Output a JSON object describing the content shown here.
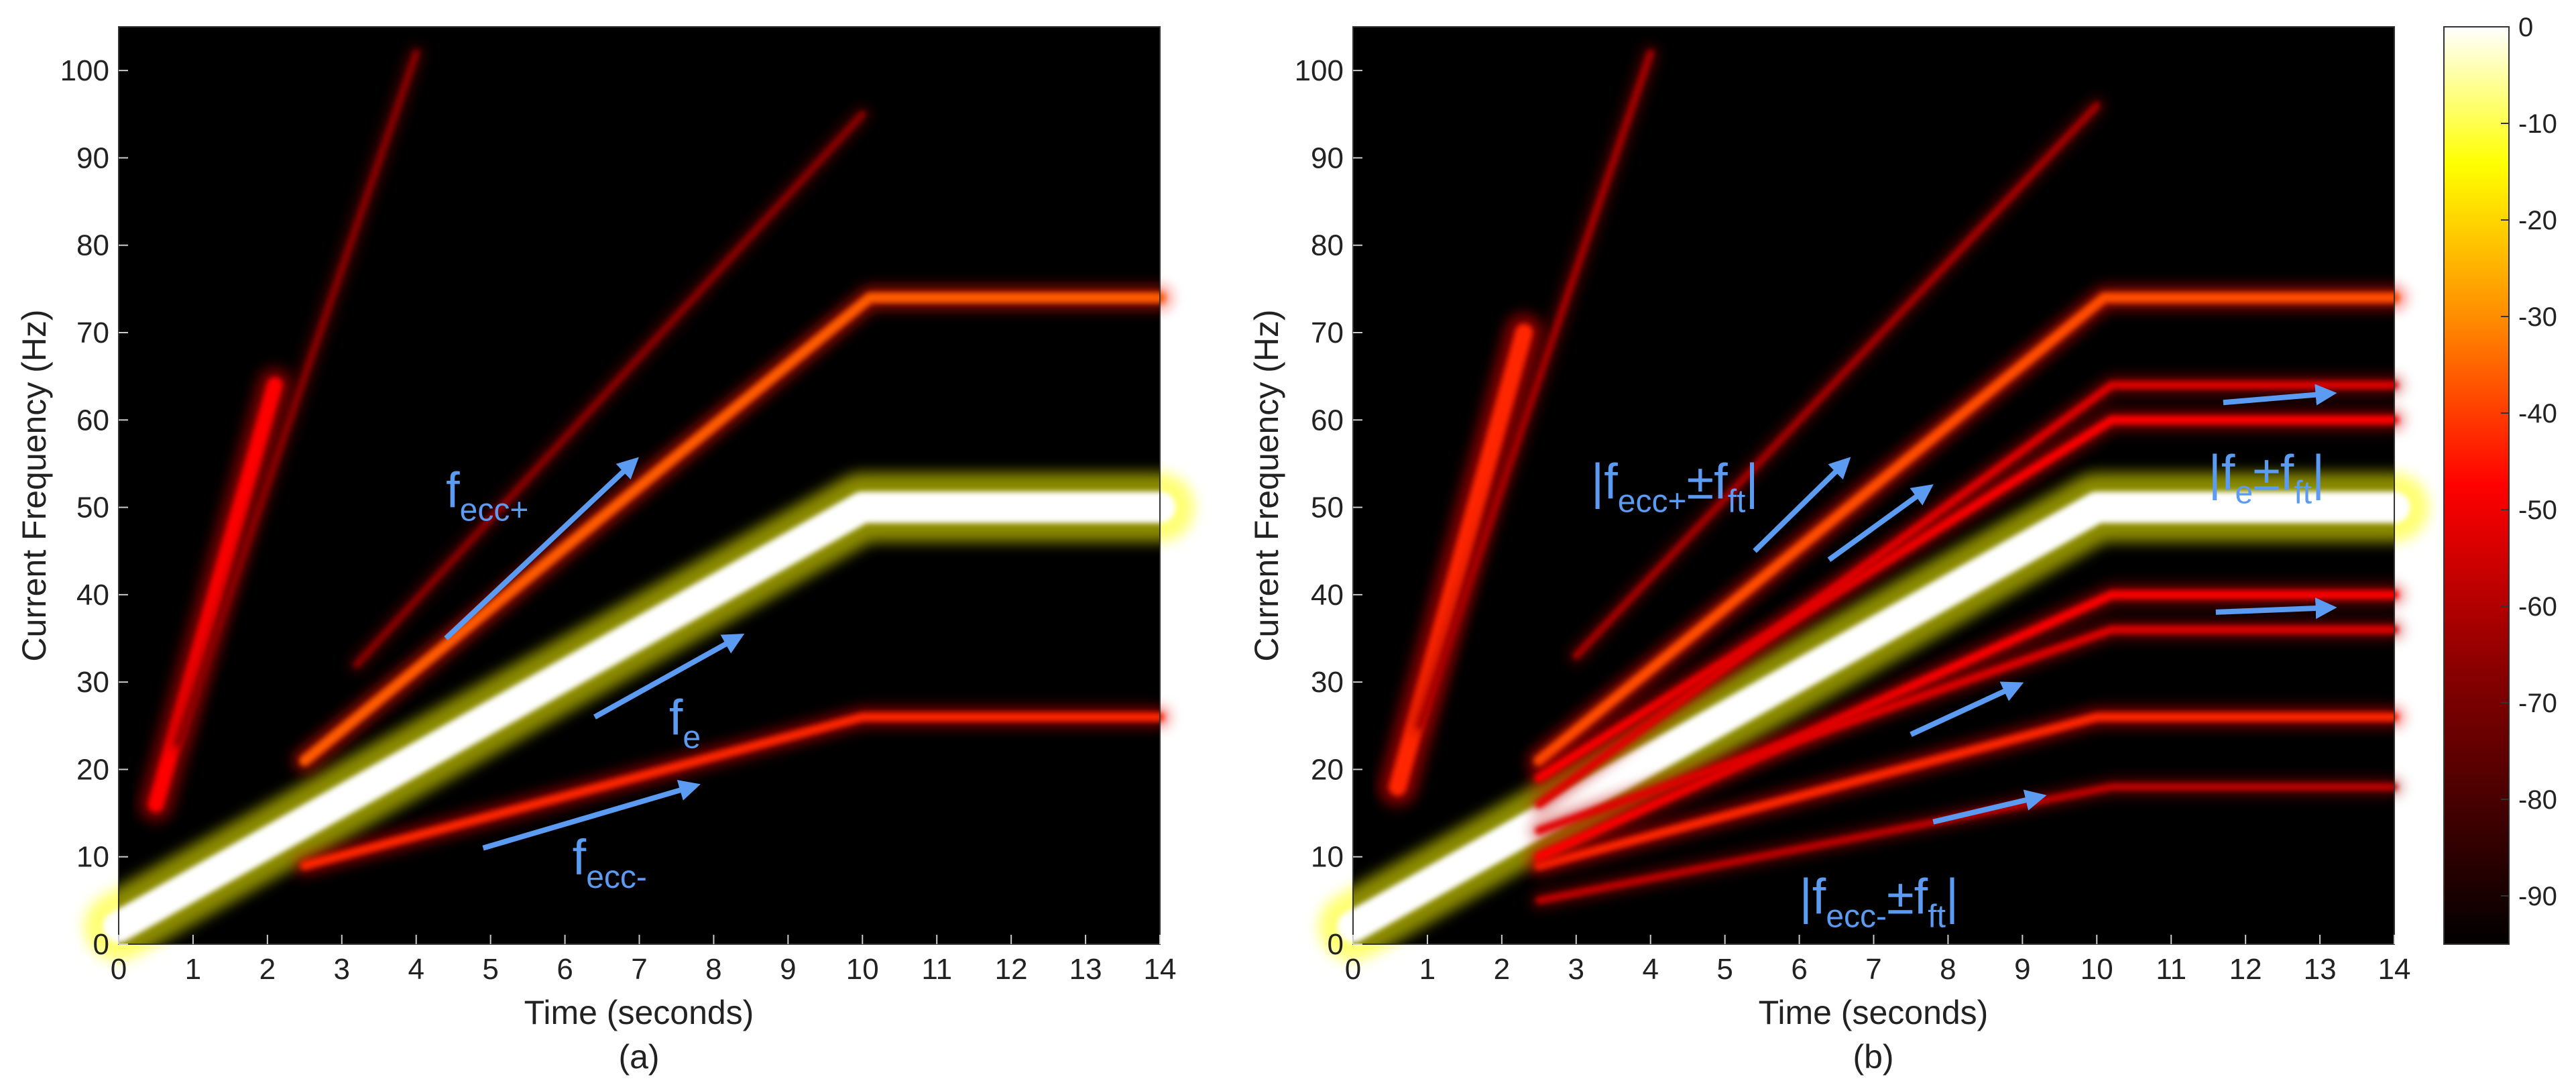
{
  "chart_data": {
    "type": "heatmap",
    "colormap": "hot",
    "colorbar": {
      "min": -95,
      "max": 0,
      "ticks": [
        0,
        -10,
        -20,
        -30,
        -40,
        -50,
        -60,
        -70,
        -80,
        -90
      ],
      "placement": "right"
    },
    "panels": [
      {
        "id": "a",
        "caption": "(a)",
        "xlabel": "Time (seconds)",
        "ylabel": "Current Frequency (Hz)",
        "xlim": [
          0,
          14
        ],
        "ylim": [
          0,
          105
        ],
        "xticks": [
          0,
          1,
          2,
          3,
          4,
          5,
          6,
          7,
          8,
          9,
          10,
          11,
          12,
          13,
          14
        ],
        "yticks": [
          0,
          10,
          20,
          30,
          40,
          50,
          60,
          70,
          80,
          90,
          100
        ],
        "traces": [
          {
            "name": "f_e",
            "intensity": 1.0,
            "width": 3.6,
            "points": [
              [
                0,
                2
              ],
              [
                10,
                50
              ],
              [
                14,
                50
              ]
            ]
          },
          {
            "name": "f_ecc+",
            "intensity": 0.62,
            "width": 1.2,
            "points": [
              [
                2.5,
                21
              ],
              [
                10.1,
                74
              ],
              [
                14,
                74
              ]
            ]
          },
          {
            "name": "f_ecc-",
            "intensity": 0.55,
            "width": 1.0,
            "points": [
              [
                2.5,
                9
              ],
              [
                10,
                26
              ],
              [
                14,
                26
              ]
            ]
          },
          {
            "name": "steep",
            "intensity": 0.5,
            "width": 1.8,
            "points": [
              [
                0.5,
                16
              ],
              [
                2.1,
                64
              ]
            ]
          },
          {
            "name": "steep-faint",
            "intensity": 0.3,
            "width": 0.8,
            "points": [
              [
                0.8,
                23
              ],
              [
                4,
                102
              ]
            ]
          },
          {
            "name": "upper-faint",
            "intensity": 0.3,
            "width": 0.8,
            "points": [
              [
                3.2,
                32
              ],
              [
                10,
                95
              ]
            ]
          },
          {
            "name": "top-band",
            "intensity": 0.45,
            "width": 1.0,
            "points": [
              [
                10.2,
                100
              ],
              [
                14,
                100
              ]
            ]
          },
          {
            "name": "top-band-2",
            "intensity": 0.25,
            "width": 0.6,
            "points": [
              [
                10.2,
                98
              ],
              [
                14,
                98
              ]
            ]
          },
          {
            "name": "lower-band",
            "intensity": 0.3,
            "width": 0.7,
            "points": [
              [
                10.2,
                45
              ],
              [
                14,
                45
              ]
            ]
          },
          {
            "name": "low-band",
            "intensity": 0.25,
            "width": 0.6,
            "points": [
              [
                10.2,
                21
              ],
              [
                14,
                21
              ]
            ]
          }
        ],
        "annotations": [
          {
            "main": "f",
            "sub": "ecc+",
            "x": 4.4,
            "y": 50
          },
          {
            "main": "f",
            "sub": "e",
            "x": 7.4,
            "y": 24
          },
          {
            "main": "f",
            "sub": "ecc-",
            "x": 6.1,
            "y": 8
          }
        ],
        "arrows": [
          {
            "from": [
              4.4,
              35
            ],
            "to": [
              6.9,
              55
            ]
          },
          {
            "from": [
              6.4,
              26
            ],
            "to": [
              8.3,
              35
            ]
          },
          {
            "from": [
              4.9,
              11
            ],
            "to": [
              7.7,
              18
            ]
          }
        ]
      },
      {
        "id": "b",
        "caption": "(b)",
        "xlabel": "Time (seconds)",
        "ylabel": "Current Frequency (Hz)",
        "xlim": [
          0,
          14
        ],
        "ylim": [
          0,
          105
        ],
        "xticks": [
          0,
          1,
          2,
          3,
          4,
          5,
          6,
          7,
          8,
          9,
          10,
          11,
          12,
          13,
          14
        ],
        "yticks": [
          0,
          10,
          20,
          30,
          40,
          50,
          60,
          70,
          80,
          90,
          100
        ],
        "traces": [
          {
            "name": "f_e",
            "intensity": 1.0,
            "width": 3.6,
            "points": [
              [
                0,
                2
              ],
              [
                10,
                50
              ],
              [
                14,
                50
              ]
            ]
          },
          {
            "name": "f_ecc+",
            "intensity": 0.6,
            "width": 1.2,
            "points": [
              [
                2.5,
                21
              ],
              [
                10.1,
                74
              ],
              [
                14,
                74
              ]
            ]
          },
          {
            "name": "f_ecc-",
            "intensity": 0.55,
            "width": 1.0,
            "points": [
              [
                2.5,
                9
              ],
              [
                10,
                26
              ],
              [
                14,
                26
              ]
            ]
          },
          {
            "name": "f_e+f_ft",
            "intensity": 0.5,
            "width": 1.0,
            "points": [
              [
                2.5,
                19
              ],
              [
                10.2,
                60
              ],
              [
                14,
                60
              ]
            ]
          },
          {
            "name": "f_e-f_ft",
            "intensity": 0.5,
            "width": 1.0,
            "points": [
              [
                2.5,
                10
              ],
              [
                10.2,
                40
              ],
              [
                14,
                40
              ]
            ]
          },
          {
            "name": "f_ecc+-f_ft",
            "intensity": 0.45,
            "width": 0.9,
            "points": [
              [
                2.5,
                16
              ],
              [
                10.2,
                64
              ],
              [
                14,
                64
              ]
            ]
          },
          {
            "name": "f_ecc-+f_ft",
            "intensity": 0.45,
            "width": 0.9,
            "points": [
              [
                2.5,
                13
              ],
              [
                10.2,
                36
              ],
              [
                14,
                36
              ]
            ]
          },
          {
            "name": "f_ecc--f_ft",
            "intensity": 0.4,
            "width": 0.8,
            "points": [
              [
                2.5,
                5
              ],
              [
                10.2,
                18
              ],
              [
                14,
                18
              ]
            ]
          },
          {
            "name": "steep",
            "intensity": 0.55,
            "width": 2.0,
            "points": [
              [
                0.6,
                18
              ],
              [
                2.3,
                70
              ]
            ]
          },
          {
            "name": "steep-faint",
            "intensity": 0.35,
            "width": 0.8,
            "points": [
              [
                0.9,
                25
              ],
              [
                4,
                102
              ]
            ]
          },
          {
            "name": "upper-faint",
            "intensity": 0.35,
            "width": 0.8,
            "points": [
              [
                3,
                33
              ],
              [
                10,
                96
              ]
            ]
          },
          {
            "name": "top-band",
            "intensity": 0.45,
            "width": 1.0,
            "points": [
              [
                10.2,
                100
              ],
              [
                14,
                100
              ]
            ]
          },
          {
            "name": "band-80",
            "intensity": 0.3,
            "width": 0.7,
            "points": [
              [
                10.2,
                80
              ],
              [
                14,
                80
              ]
            ]
          },
          {
            "name": "band-70",
            "intensity": 0.3,
            "width": 0.7,
            "points": [
              [
                10.2,
                70
              ],
              [
                14,
                70
              ]
            ]
          },
          {
            "name": "band-30",
            "intensity": 0.3,
            "width": 0.7,
            "points": [
              [
                10.2,
                30
              ],
              [
                14,
                30
              ]
            ]
          },
          {
            "name": "band-23",
            "intensity": 0.3,
            "width": 0.7,
            "points": [
              [
                10.2,
                23
              ],
              [
                14,
                23
              ]
            ]
          },
          {
            "name": "band-15",
            "intensity": 0.3,
            "width": 0.7,
            "points": [
              [
                10.2,
                15
              ],
              [
                14,
                15
              ]
            ]
          },
          {
            "name": "band-10",
            "intensity": 0.25,
            "width": 0.6,
            "points": [
              [
                10.2,
                10
              ],
              [
                14,
                10
              ]
            ]
          },
          {
            "name": "band-5",
            "intensity": 0.25,
            "width": 0.6,
            "points": [
              [
                10.2,
                5
              ],
              [
                14,
                5
              ]
            ]
          }
        ],
        "annotations": [
          {
            "main": "|f",
            "sub": "ecc+",
            "tail": "±f",
            "sub2": "ft",
            "end": "|",
            "x": 3.2,
            "y": 51
          },
          {
            "main": "|f",
            "sub": "e",
            "tail": "±f",
            "sub2": "ft",
            "end": "|",
            "x": 11.5,
            "y": 52
          },
          {
            "main": "|f",
            "sub": "ecc-",
            "tail": "±f",
            "sub2": "ft",
            "end": "|",
            "x": 6,
            "y": 3.5
          }
        ],
        "arrows": [
          {
            "from": [
              5.4,
              45
            ],
            "to": [
              6.6,
              55
            ]
          },
          {
            "from": [
              6.4,
              44
            ],
            "to": [
              7.7,
              52
            ]
          },
          {
            "from": [
              11.7,
              62
            ],
            "to": [
              13.1,
              63
            ]
          },
          {
            "from": [
              11.6,
              38
            ],
            "to": [
              13.1,
              38.5
            ]
          },
          {
            "from": [
              7.5,
              24
            ],
            "to": [
              8.9,
              29.5
            ]
          },
          {
            "from": [
              7.8,
              14
            ],
            "to": [
              9.2,
              16.8
            ]
          }
        ]
      }
    ]
  }
}
